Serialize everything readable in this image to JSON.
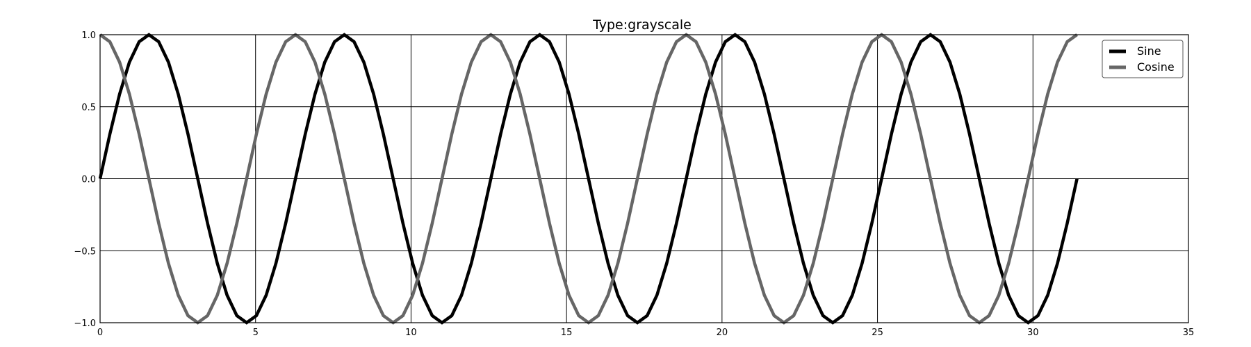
{
  "chart_data": {
    "type": "line",
    "title": "Type:grayscale",
    "xlabel": "",
    "ylabel": "",
    "xlim": [
      0,
      35
    ],
    "ylim": [
      -1.0,
      1.0
    ],
    "grid": true,
    "legend_position": "top-right",
    "x_ticks": [
      0,
      5,
      10,
      15,
      20,
      25,
      30,
      35
    ],
    "x_tick_labels": [
      "0",
      "5",
      "10",
      "15",
      "20",
      "25",
      "30",
      "35"
    ],
    "y_ticks": [
      -1.0,
      -0.5,
      0.0,
      0.5,
      1.0
    ],
    "y_tick_labels": [
      "−1.0",
      "−0.5",
      "0.0",
      "0.5",
      "1.0"
    ],
    "x": [
      0.0,
      0.3142,
      0.6283,
      0.9425,
      1.2566,
      1.5708,
      1.885,
      2.1991,
      2.5133,
      2.8274,
      3.1416,
      3.4558,
      3.7699,
      4.0841,
      4.3982,
      4.7124,
      5.0265,
      5.3407,
      5.6549,
      5.969,
      6.2832,
      6.5973,
      6.9115,
      7.2257,
      7.5398,
      7.854,
      8.1681,
      8.4823,
      8.7965,
      9.1106,
      9.4248,
      9.7389,
      10.0531,
      10.3673,
      10.6814,
      10.9956,
      11.3097,
      11.6239,
      11.9381,
      12.2522,
      12.5664,
      12.8805,
      13.1947,
      13.5088,
      13.823,
      14.1372,
      14.4513,
      14.7655,
      15.0796,
      15.3938,
      15.708,
      16.0221,
      16.3363,
      16.6504,
      16.9646,
      17.2788,
      17.5929,
      17.9071,
      18.2212,
      18.5354,
      18.8496,
      19.1637,
      19.4779,
      19.792,
      20.1062,
      20.4204,
      20.7345,
      21.0487,
      21.3628,
      21.677,
      21.9911,
      22.3053,
      22.6195,
      22.9336,
      23.2478,
      23.5619,
      23.8761,
      24.1903,
      24.5044,
      24.8186,
      25.1327,
      25.4469,
      25.7611,
      26.0752,
      26.3894,
      26.7035,
      27.0177,
      27.3319,
      27.646,
      27.9602,
      28.2743,
      28.5885,
      28.9027,
      29.2168,
      29.531,
      29.8451,
      30.1593,
      30.4734,
      30.7876,
      31.1018,
      31.4159
    ],
    "series": [
      {
        "name": "Sine",
        "color": "#000000",
        "values": [
          0.0,
          0.309,
          0.5878,
          0.809,
          0.9511,
          1.0,
          0.9511,
          0.809,
          0.5878,
          0.309,
          0.0,
          -0.309,
          -0.5878,
          -0.809,
          -0.9511,
          -1.0,
          -0.9511,
          -0.809,
          -0.5878,
          -0.309,
          0.0,
          0.309,
          0.5878,
          0.809,
          0.9511,
          1.0,
          0.9511,
          0.809,
          0.5878,
          0.309,
          0.0,
          -0.309,
          -0.5878,
          -0.809,
          -0.9511,
          -1.0,
          -0.9511,
          -0.809,
          -0.5878,
          -0.309,
          0.0,
          0.309,
          0.5878,
          0.809,
          0.9511,
          1.0,
          0.9511,
          0.809,
          0.5878,
          0.309,
          0.0,
          -0.309,
          -0.5878,
          -0.809,
          -0.9511,
          -1.0,
          -0.9511,
          -0.809,
          -0.5878,
          -0.309,
          0.0,
          0.309,
          0.5878,
          0.809,
          0.9511,
          1.0,
          0.9511,
          0.809,
          0.5878,
          0.309,
          0.0,
          -0.309,
          -0.5878,
          -0.809,
          -0.9511,
          -1.0,
          -0.9511,
          -0.809,
          -0.5878,
          -0.309,
          0.0,
          0.309,
          0.5878,
          0.809,
          0.9511,
          1.0,
          0.9511,
          0.809,
          0.5878,
          0.309,
          0.0,
          -0.309,
          -0.5878,
          -0.809,
          -0.9511,
          -1.0,
          -0.9511,
          -0.809,
          -0.5878,
          -0.309,
          0.0
        ]
      },
      {
        "name": "Cosine",
        "color": "#666666",
        "values": [
          1.0,
          0.9511,
          0.809,
          0.5878,
          0.309,
          0.0,
          -0.309,
          -0.5878,
          -0.809,
          -0.9511,
          -1.0,
          -0.9511,
          -0.809,
          -0.5878,
          -0.309,
          0.0,
          0.309,
          0.5878,
          0.809,
          0.9511,
          1.0,
          0.9511,
          0.809,
          0.5878,
          0.309,
          0.0,
          -0.309,
          -0.5878,
          -0.809,
          -0.9511,
          -1.0,
          -0.9511,
          -0.809,
          -0.5878,
          -0.309,
          0.0,
          0.309,
          0.5878,
          0.809,
          0.9511,
          1.0,
          0.9511,
          0.809,
          0.5878,
          0.309,
          0.0,
          -0.309,
          -0.5878,
          -0.809,
          -0.9511,
          -1.0,
          -0.9511,
          -0.809,
          -0.5878,
          -0.309,
          0.0,
          0.309,
          0.5878,
          0.809,
          0.9511,
          1.0,
          0.9511,
          0.809,
          0.5878,
          0.309,
          0.0,
          -0.309,
          -0.5878,
          -0.809,
          -0.9511,
          -1.0,
          -0.9511,
          -0.809,
          -0.5878,
          -0.309,
          0.0,
          0.309,
          0.5878,
          0.809,
          0.9511,
          1.0,
          0.9511,
          0.809,
          0.5878,
          0.309,
          0.0,
          -0.309,
          -0.5878,
          -0.809,
          -0.9511,
          -1.0,
          -0.9511,
          -0.809,
          -0.5878,
          -0.309,
          0.0,
          0.309,
          0.5878,
          0.809,
          0.9511,
          1.0
        ]
      }
    ]
  }
}
